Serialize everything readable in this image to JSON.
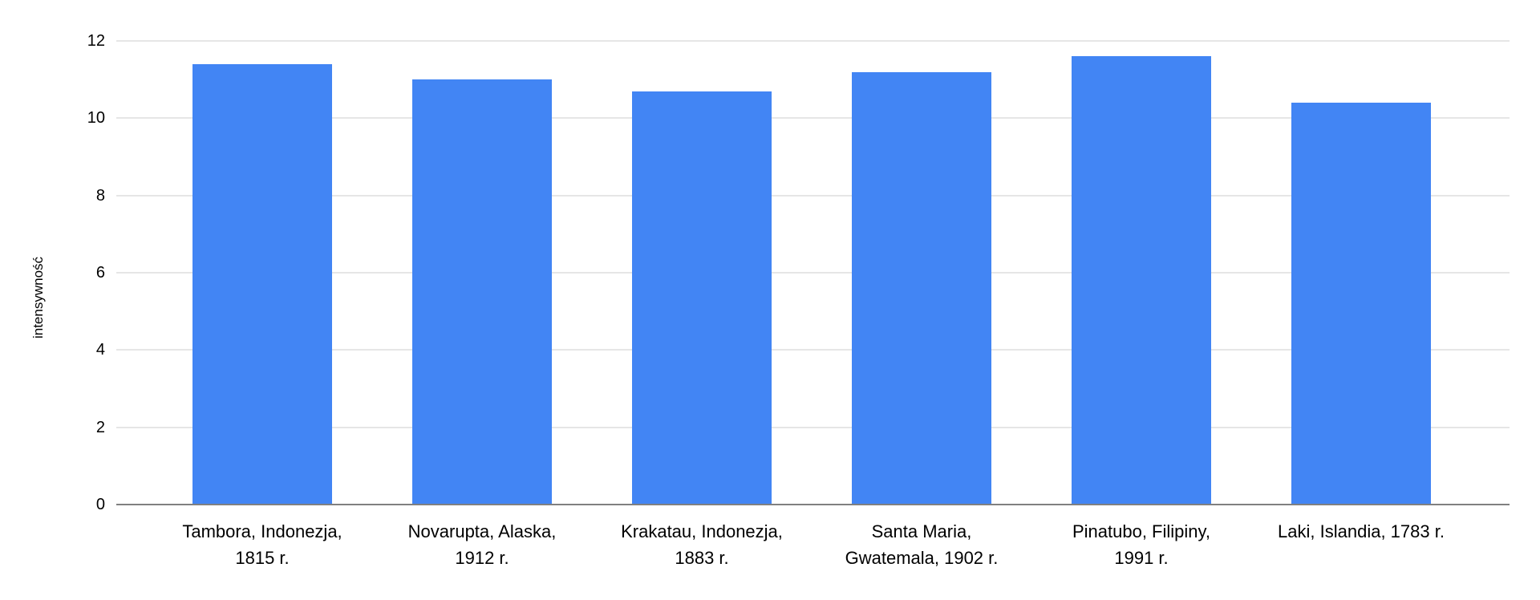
{
  "chart_data": {
    "type": "bar",
    "title": "",
    "xlabel": "",
    "ylabel": "intensywność",
    "categories": [
      "Tambora, Indonezja, 1815 r.",
      "Novarupta, Alaska, 1912 r.",
      "Krakatau, Indonezja, 1883 r.",
      "Santa Maria, Gwatemala, 1902 r.",
      "Pinatubo, Filipiny, 1991 r.",
      "Laki, Islandia, 1783 r."
    ],
    "category_lines": [
      [
        "Tambora, Indonezja,",
        "1815 r."
      ],
      [
        "Novarupta, Alaska,",
        "1912 r."
      ],
      [
        "Krakatau, Indonezja,",
        "1883 r."
      ],
      [
        "Santa Maria,",
        "Gwatemala, 1902 r."
      ],
      [
        "Pinatubo, Filipiny,",
        "1991 r."
      ],
      [
        "Laki, Islandia, 1783 r."
      ]
    ],
    "values": [
      11.4,
      11.0,
      10.7,
      11.2,
      11.6,
      10.4
    ],
    "ylim": [
      0,
      12
    ],
    "yticks": [
      0,
      2,
      4,
      6,
      8,
      10,
      12
    ],
    "grid": true,
    "legend": "none",
    "bar_color": "#4285f4",
    "gridline_color": "#e6e6e6",
    "baseline_color": "#808080",
    "text_color": "#000000"
  }
}
